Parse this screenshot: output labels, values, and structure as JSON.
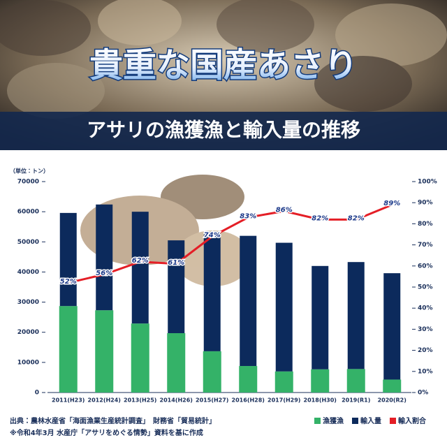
{
  "chart_data": {
    "type": "bar",
    "stacked": true,
    "title": "貴重な国産あさり",
    "subtitle": "アサリの漁獲漁と輸入量の推移",
    "y_label": "（単位：トン）",
    "notes": [
      "出典：農林水産省「海面漁業生産統計調査」　財務省「貿易統計」",
      "※令和4年3月 水産庁「アサリをめぐる情勢」資料を基に作成"
    ],
    "categories": [
      "2011(H23)",
      "2012(H24)",
      "2013(H25)",
      "2014(H26)",
      "2015(H27)",
      "2016(H28)",
      "2017(H29)",
      "2018(H30)",
      "2019(R1)",
      "2020(R2)"
    ],
    "series": [
      {
        "name": "漁獲漁",
        "color": "#34b268",
        "values": [
          28700,
          27300,
          22900,
          19700,
          13700,
          8800,
          7000,
          7700,
          7800,
          4300
        ]
      },
      {
        "name": "輸入量",
        "color": "#0c2a5c",
        "values": [
          30900,
          35100,
          37100,
          30800,
          39600,
          43200,
          42700,
          34300,
          35500,
          35300
        ]
      },
      {
        "name": "輸入割合",
        "color": "#e41e26",
        "axis": "y2",
        "values": [
          52,
          56,
          62,
          61,
          74,
          83,
          86,
          82,
          82,
          89
        ],
        "value_labels": [
          "52%",
          "56%",
          "62%",
          "61%",
          "74%",
          "83%",
          "86%",
          "82%",
          "82%",
          "89%"
        ]
      }
    ],
    "ylim": [
      0,
      70000
    ],
    "yticks": [
      0,
      10000,
      20000,
      30000,
      40000,
      50000,
      60000,
      70000
    ],
    "y2lim": [
      0,
      100
    ],
    "y2ticks": [
      {
        "value": 0,
        "label": "0%"
      },
      {
        "value": 10,
        "label": "10%"
      },
      {
        "value": 20,
        "label": "20%"
      },
      {
        "value": 30,
        "label": "30%"
      },
      {
        "value": 40,
        "label": "40%"
      },
      {
        "value": 50,
        "label": "50%"
      },
      {
        "value": 60,
        "label": "60%"
      },
      {
        "value": 70,
        "label": "70%"
      },
      {
        "value": 80,
        "label": "80%"
      },
      {
        "value": 90,
        "label": "90%"
      },
      {
        "value": 100,
        "label": "100%"
      }
    ]
  }
}
